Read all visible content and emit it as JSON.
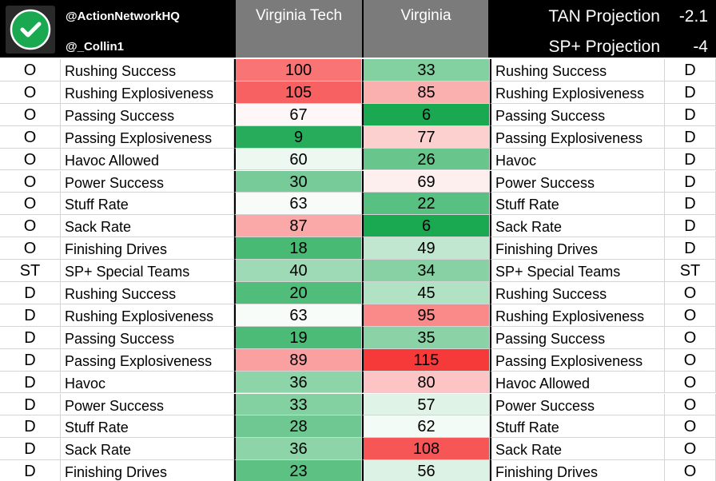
{
  "header": {
    "handle_primary": "@ActionNetworkHQ",
    "handle_secondary": "@_Collin1",
    "team_a": "Virginia Tech",
    "team_b": "Virginia",
    "projections": [
      {
        "label": "TAN Projection",
        "value": "-2.1"
      },
      {
        "label": "SP+ Projection",
        "value": "-4"
      }
    ]
  },
  "colors": {
    "good_strong": "#1aa851",
    "good_light": "#e8f6ec",
    "neutral": "#ffffff",
    "bad_light": "#fde4e4",
    "bad_strong": "#f63a3a",
    "header_gray": "#7b7b7b",
    "header_black": "#000000"
  },
  "chart_data": {
    "type": "table",
    "columns": [
      "",
      "",
      "Virginia Tech",
      "Virginia",
      "",
      ""
    ],
    "rows": [
      {
        "side_a": "O",
        "stat_a": "Rushing Success",
        "vt": 100,
        "va": 33,
        "stat_b": "Rushing Success",
        "side_b": "D"
      },
      {
        "side_a": "O",
        "stat_a": "Rushing Explosiveness",
        "vt": 105,
        "va": 85,
        "stat_b": "Rushing Explosiveness",
        "side_b": "D"
      },
      {
        "side_a": "O",
        "stat_a": "Passing Success",
        "vt": 67,
        "va": 6,
        "stat_b": "Passing Success",
        "side_b": "D"
      },
      {
        "side_a": "O",
        "stat_a": "Passing Explosiveness",
        "vt": 9,
        "va": 77,
        "stat_b": "Passing Explosiveness",
        "side_b": "D"
      },
      {
        "side_a": "O",
        "stat_a": "Havoc Allowed",
        "vt": 60,
        "va": 26,
        "stat_b": "Havoc",
        "side_b": "D"
      },
      {
        "side_a": "O",
        "stat_a": "Power Success",
        "vt": 30,
        "va": 69,
        "stat_b": "Power Success",
        "side_b": "D"
      },
      {
        "side_a": "O",
        "stat_a": "Stuff Rate",
        "vt": 63,
        "va": 22,
        "stat_b": "Stuff Rate",
        "side_b": "D"
      },
      {
        "side_a": "O",
        "stat_a": "Sack Rate",
        "vt": 87,
        "va": 6,
        "stat_b": "Sack Rate",
        "side_b": "D"
      },
      {
        "side_a": "O",
        "stat_a": "Finishing Drives",
        "vt": 18,
        "va": 49,
        "stat_b": "Finishing Drives",
        "side_b": "D"
      },
      {
        "side_a": "ST",
        "stat_a": "SP+ Special Teams",
        "vt": 40,
        "va": 34,
        "stat_b": "SP+ Special Teams",
        "side_b": "ST"
      },
      {
        "side_a": "D",
        "stat_a": "Rushing Success",
        "vt": 20,
        "va": 45,
        "stat_b": "Rushing Success",
        "side_b": "O"
      },
      {
        "side_a": "D",
        "stat_a": "Rushing Explosiveness",
        "vt": 63,
        "va": 95,
        "stat_b": "Rushing Explosiveness",
        "side_b": "O"
      },
      {
        "side_a": "D",
        "stat_a": "Passing Success",
        "vt": 19,
        "va": 35,
        "stat_b": "Passing Success",
        "side_b": "O"
      },
      {
        "side_a": "D",
        "stat_a": "Passing Explosiveness",
        "vt": 89,
        "va": 115,
        "stat_b": "Passing Explosiveness",
        "side_b": "O"
      },
      {
        "side_a": "D",
        "stat_a": "Havoc",
        "vt": 36,
        "va": 80,
        "stat_b": "Havoc Allowed",
        "side_b": "O"
      },
      {
        "side_a": "D",
        "stat_a": "Power Success",
        "vt": 33,
        "va": 57,
        "stat_b": "Power Success",
        "side_b": "O"
      },
      {
        "side_a": "D",
        "stat_a": "Stuff Rate",
        "vt": 28,
        "va": 62,
        "stat_b": "Stuff Rate",
        "side_b": "O"
      },
      {
        "side_a": "D",
        "stat_a": "Sack Rate",
        "vt": 36,
        "va": 108,
        "stat_b": "Sack Rate",
        "side_b": "O"
      },
      {
        "side_a": "D",
        "stat_a": "Finishing Drives",
        "vt": 23,
        "va": 56,
        "stat_b": "Finishing Drives",
        "side_b": "O"
      }
    ]
  }
}
